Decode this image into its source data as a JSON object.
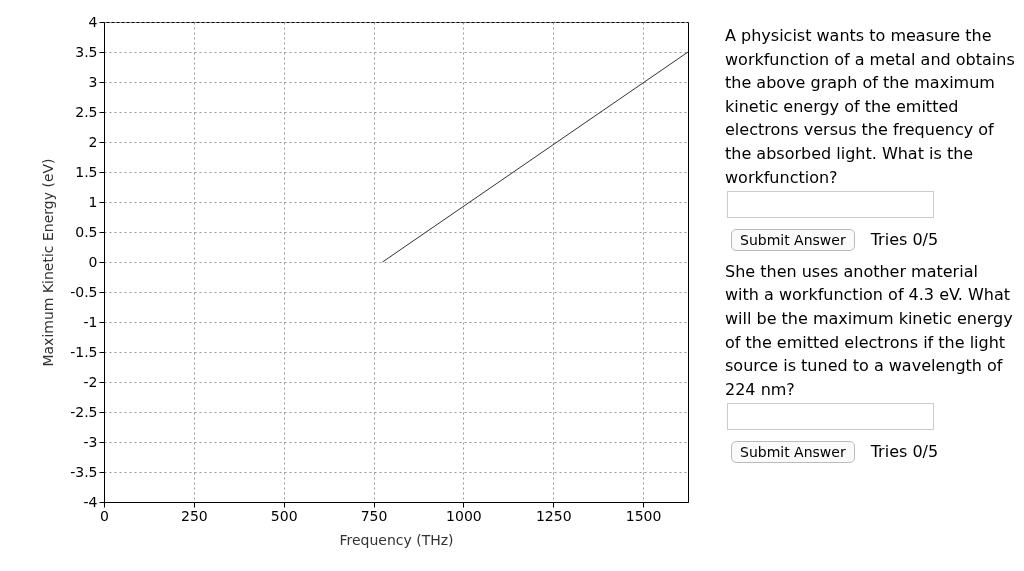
{
  "chart_data": {
    "type": "line",
    "xlabel": "Frequency (THz)",
    "ylabel": "Maximum Kinetic Energy (eV)",
    "x": [
      775,
      1625
    ],
    "series": [
      {
        "color": "#333333",
        "values": [
          0,
          3.5
        ]
      }
    ],
    "xlim": [
      0,
      1625
    ],
    "xticks": [
      0,
      250,
      500,
      750,
      1000,
      1250,
      1500
    ],
    "ylim": [
      -4,
      4
    ],
    "yticks": [
      -4,
      -3.5,
      -3,
      -2.5,
      -2,
      -1.5,
      -1,
      -0.5,
      0,
      0.5,
      1,
      1.5,
      2,
      2.5,
      3,
      3.5,
      4
    ],
    "grid": true,
    "marker": "none",
    "line_style": "solid",
    "annotations": [
      "A physicist wants to measure the workfunction of a metal and obtains the above graph of the maximum kinetic energy of the emitted electrons versus the frequency of the absorbed light. What is the workfunction?",
      "Submit Answer",
      "Tries 0/5",
      "She then uses another material with a workfunction of 4.3 eV. What will be the maximum kinetic energy of the emitted electrons if the light source is tuned to a wavelength of 224 nm?",
      "Submit Answer",
      "Tries 0/5"
    ]
  }
}
